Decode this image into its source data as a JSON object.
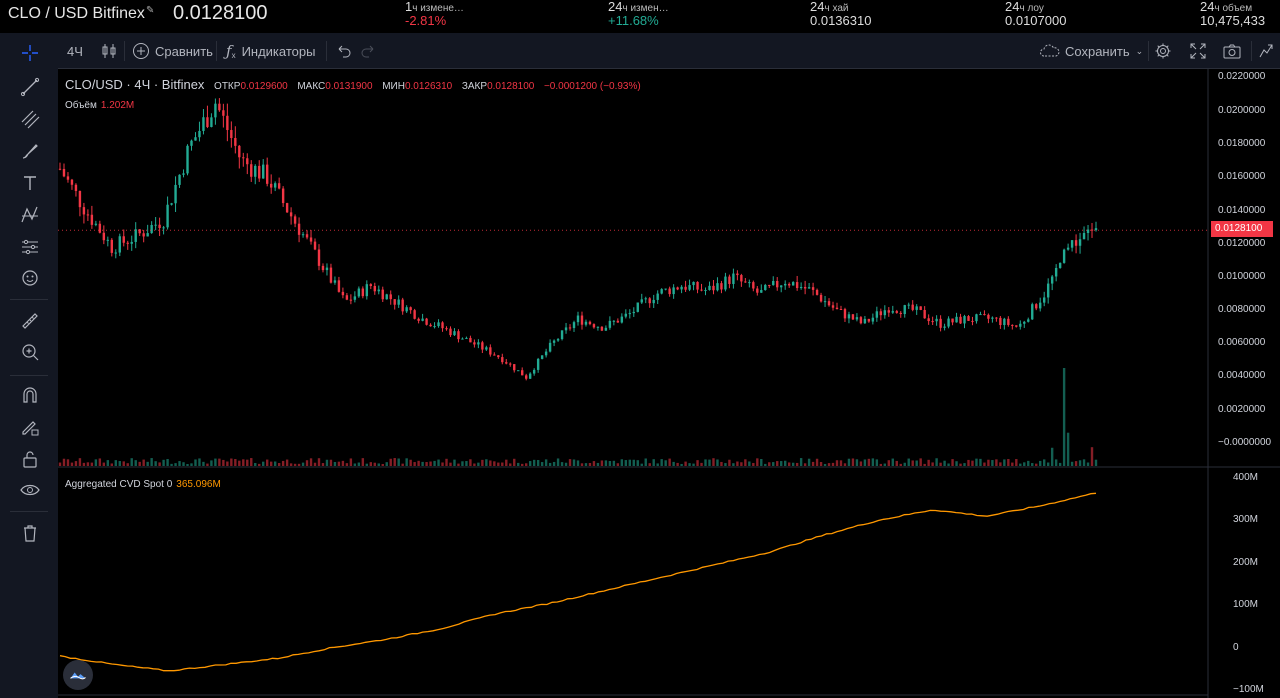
{
  "ticker": {
    "symbol": "CLO / USD Bitfinex",
    "price": "0.0128100",
    "stats": [
      {
        "prefix": "1",
        "label": "ч измене…",
        "value": "-2.81%",
        "tone": "neg"
      },
      {
        "prefix": "24",
        "label": "ч измен…",
        "value": "+11.68%",
        "tone": "pos"
      },
      {
        "prefix": "24",
        "label": "ч хай",
        "value": "0.0136310",
        "tone": "plain"
      },
      {
        "prefix": "24",
        "label": "ч лоу",
        "value": "0.0107000",
        "tone": "plain"
      },
      {
        "prefix": "24",
        "label": "ч объем",
        "value": "10,475,433",
        "tone": "plain"
      }
    ]
  },
  "toolbar": {
    "interval": "4Ч",
    "compare": "Сравнить",
    "indicators": "Индикаторы",
    "save": "Сохранить"
  },
  "legend": {
    "title": "CLO/USD · 4Ч · Bitfinex",
    "open_label": "ОТКР",
    "open": "0.0129600",
    "high_label": "МАКС",
    "high": "0.0131900",
    "low_label": "МИН",
    "low": "0.0126310",
    "close_label": "ЗАКР",
    "close": "0.0128100",
    "change": "−0.0001200 (−0.93%)",
    "volume_label": "Объём",
    "volume": "1.202M",
    "cvd_label": "Aggregated CVD Spot 0",
    "cvd": "365.096M"
  },
  "price_axis": {
    "current": "0.0128100",
    "ticks": [
      "0.0220000",
      "0.0200000",
      "0.0180000",
      "0.0160000",
      "0.0140000",
      "0.0120000",
      "0.0100000",
      "0.0080000",
      "0.0060000",
      "0.0040000",
      "0.0020000",
      "−0.0000000"
    ]
  },
  "cvd_axis": {
    "ticks": [
      "400M",
      "300M",
      "200M",
      "100M",
      "0",
      "−100M"
    ]
  },
  "colors": {
    "up": "#22ab94",
    "down": "#f23645",
    "cvd": "#ff9800",
    "bg": "#000000"
  },
  "chart_data": {
    "type": "line",
    "price_series_approx": {
      "name": "CLO/USD",
      "y_range": [
        0,
        0.022
      ],
      "anchors": [
        0.0165,
        0.014,
        0.0118,
        0.0125,
        0.0135,
        0.0178,
        0.0205,
        0.017,
        0.016,
        0.0135,
        0.011,
        0.0085,
        0.0095,
        0.0085,
        0.0075,
        0.0068,
        0.006,
        0.0052,
        0.004,
        0.006,
        0.0075,
        0.007,
        0.0078,
        0.009,
        0.0095,
        0.0092,
        0.01,
        0.009,
        0.0098,
        0.0092,
        0.008,
        0.0072,
        0.0082,
        0.008,
        0.0072,
        0.0075,
        0.0075,
        0.007,
        0.009,
        0.012,
        0.0128
      ]
    },
    "cvd_series_approx": {
      "name": "Aggregated CVD Spot",
      "y_range": [
        -100,
        400
      ],
      "anchors": [
        -20,
        -40,
        -55,
        -40,
        -25,
        0,
        20,
        45,
        80,
        105,
        135,
        165,
        195,
        225,
        265,
        300,
        325,
        310,
        335,
        365
      ]
    }
  }
}
